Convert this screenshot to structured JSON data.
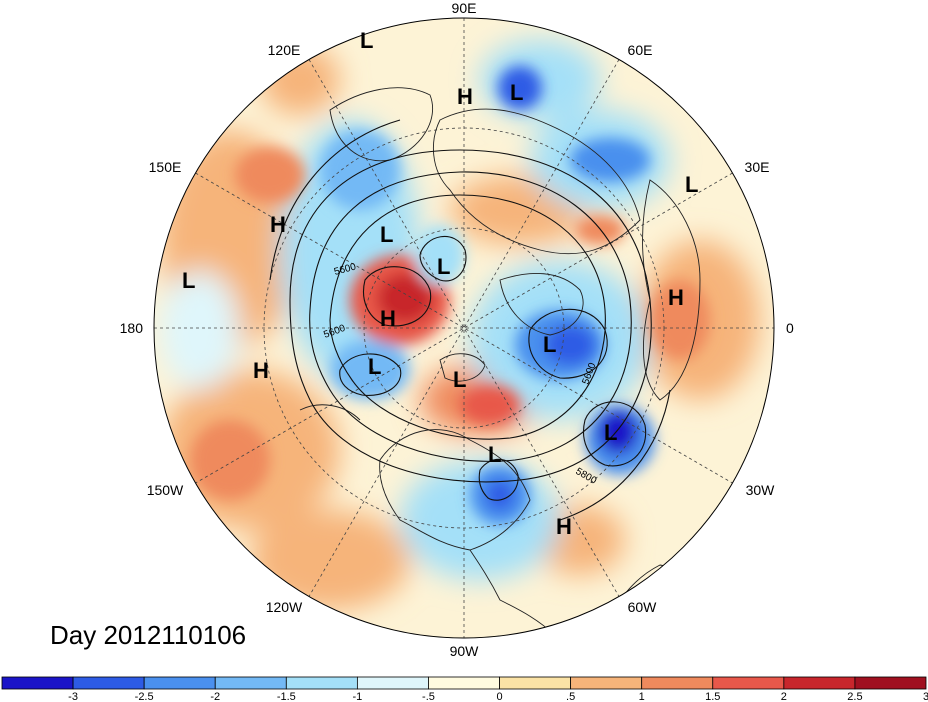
{
  "map": {
    "longitude_labels": [
      "90E",
      "60E",
      "30E",
      "0",
      "30W",
      "60W",
      "90W",
      "120W",
      "150W",
      "180",
      "150E",
      "120E"
    ],
    "pressure_centers": [
      {
        "type": "L",
        "id": "l1"
      },
      {
        "type": "H",
        "id": "h1"
      },
      {
        "type": "L",
        "id": "l2"
      },
      {
        "type": "L",
        "id": "l3"
      },
      {
        "type": "H",
        "id": "h2"
      },
      {
        "type": "L",
        "id": "l4"
      },
      {
        "type": "L",
        "id": "l5"
      },
      {
        "type": "H",
        "id": "h3"
      },
      {
        "type": "L",
        "id": "l6"
      },
      {
        "type": "H",
        "id": "h4"
      },
      {
        "type": "L",
        "id": "l7"
      },
      {
        "type": "L",
        "id": "l8"
      },
      {
        "type": "H",
        "id": "h5"
      },
      {
        "type": "L",
        "id": "l9"
      },
      {
        "type": "L",
        "id": "l10"
      },
      {
        "type": "H",
        "id": "h6"
      },
      {
        "type": "L",
        "id": "l11"
      }
    ],
    "contour_labels": [
      "5600",
      "5600",
      "5600",
      "5800"
    ]
  },
  "title": "Day 2012110106",
  "colorbar": {
    "colors": [
      "#1a14c8",
      "#2d5be5",
      "#4a90ee",
      "#73b9f5",
      "#a4e0f8",
      "#dff6fb",
      "#fffbe0",
      "#fbe3a6",
      "#f6b47a",
      "#ef8a5d",
      "#e8584a",
      "#c8262c",
      "#a01020"
    ],
    "tick_labels": [
      "-3",
      "-2.5",
      "-2",
      "-1.5",
      "-1",
      "-.5",
      "0",
      ".5",
      "1",
      "1.5",
      "2",
      "2.5",
      "3"
    ]
  }
}
